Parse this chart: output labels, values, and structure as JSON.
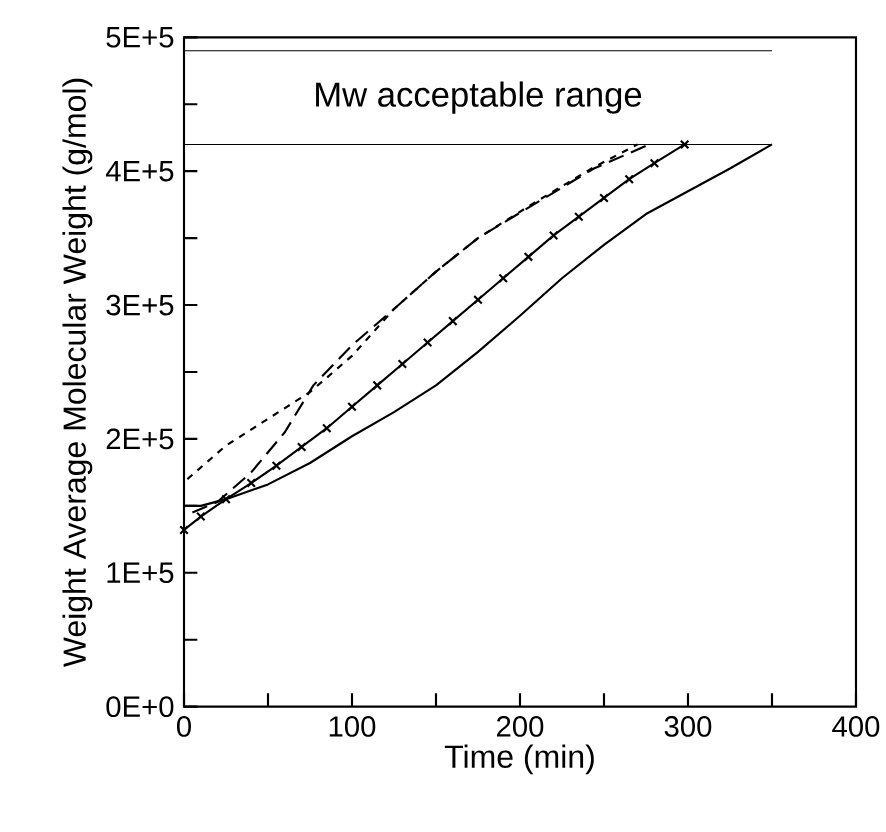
{
  "chart_data": {
    "type": "line",
    "xlabel": "Time (min)",
    "ylabel": "Weight Average Molecular Weight (g/mol)",
    "xlim": [
      0,
      400
    ],
    "ylim": [
      0,
      500000
    ],
    "xticks": [
      0,
      {
        "value": 50,
        "label": null
      },
      100,
      {
        "value": 150,
        "label": null
      },
      200,
      {
        "value": 250,
        "label": null
      },
      300,
      {
        "value": 350,
        "label": null
      },
      400
    ],
    "yticks": [
      {
        "value": 0,
        "label": "0E+0"
      },
      {
        "value": 50000,
        "label": null
      },
      {
        "value": 100000,
        "label": "1E+5"
      },
      {
        "value": 150000,
        "label": null
      },
      {
        "value": 200000,
        "label": "2E+5"
      },
      {
        "value": 250000,
        "label": null
      },
      {
        "value": 300000,
        "label": "3E+5"
      },
      {
        "value": 350000,
        "label": null
      },
      {
        "value": 400000,
        "label": "4E+5"
      },
      {
        "value": 450000,
        "label": null
      },
      {
        "value": 500000,
        "label": "5E+5"
      }
    ],
    "grid": false,
    "ref_lines": [
      {
        "axis": "y",
        "value": 420000
      },
      {
        "axis": "y",
        "value": 490000
      }
    ],
    "annotations": [
      "Mw acceptable range"
    ],
    "series": [
      {
        "color": "#000000",
        "line_style": "solid",
        "marker": "none",
        "x": [
          0,
          10,
          25,
          50,
          75,
          100,
          125,
          150,
          175,
          200,
          225,
          250,
          275,
          300,
          325,
          350
        ],
        "values": [
          150000,
          150000,
          155000,
          166000,
          182000,
          202000,
          220000,
          240000,
          265000,
          292000,
          320000,
          345000,
          368000,
          385000,
          402000,
          420000
        ]
      },
      {
        "color": "#000000",
        "line_style": "solid",
        "marker": "cross",
        "x": [
          0,
          10,
          25,
          40,
          55,
          70,
          85,
          100,
          115,
          130,
          145,
          160,
          175,
          190,
          205,
          220,
          235,
          250,
          265,
          280,
          298
        ],
        "values": [
          132000,
          142000,
          155000,
          167000,
          180000,
          194000,
          208000,
          224000,
          240000,
          256000,
          272000,
          288000,
          304000,
          320000,
          336000,
          352000,
          366000,
          380000,
          394000,
          406000,
          420000
        ]
      },
      {
        "color": "#000000",
        "line_style": "dashed",
        "marker": "none",
        "x": [
          5,
          20,
          40,
          60,
          77,
          100,
          125,
          150,
          175,
          208,
          244,
          277
        ],
        "values": [
          145000,
          153000,
          175000,
          205000,
          240000,
          270000,
          297000,
          325000,
          350000,
          375000,
          402000,
          420000
        ]
      },
      {
        "color": "#000000",
        "line_style": "dotted",
        "marker": "none",
        "x": [
          2,
          25,
          50,
          75,
          100,
          125,
          150,
          175,
          208,
          244,
          270
        ],
        "values": [
          170000,
          195000,
          215000,
          235000,
          262000,
          297000,
          325000,
          350000,
          376000,
          403000,
          420000
        ]
      }
    ]
  }
}
